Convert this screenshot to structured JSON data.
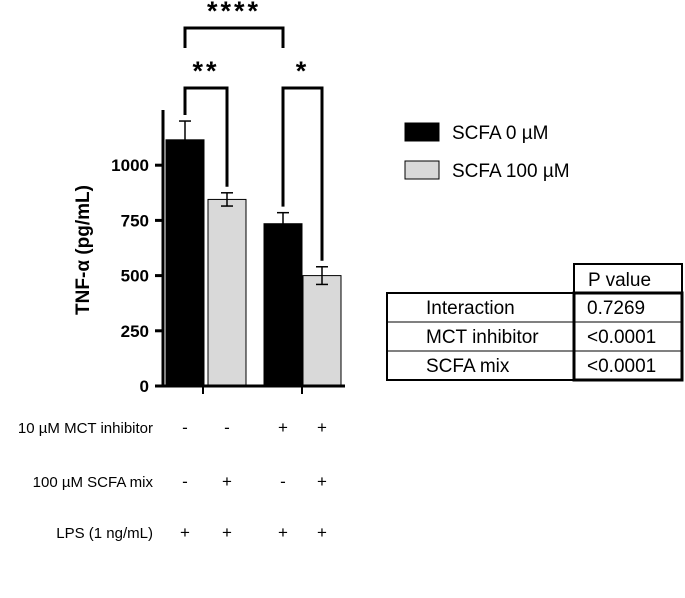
{
  "chart_data": {
    "type": "bar",
    "ylabel": "TNF-α (pg/mL)",
    "ylim": [
      0,
      1250
    ],
    "yticks": [
      0,
      250,
      500,
      750,
      1000
    ],
    "categories": [
      "group1",
      "group2"
    ],
    "series": [
      {
        "name": "SCFA 0 µM",
        "color": "#000000",
        "values": [
          1115,
          735
        ],
        "errors": [
          85,
          50
        ]
      },
      {
        "name": "SCFA 100 µM",
        "color": "#d9d9d9",
        "values": [
          845,
          500
        ],
        "errors": [
          30,
          40
        ]
      }
    ],
    "significance": [
      {
        "label": "****",
        "from_bar": 0,
        "to_bar": 2
      },
      {
        "label": "**",
        "from_bar": 0,
        "to_bar": 1
      },
      {
        "label": "*",
        "from_bar": 2,
        "to_bar": 3
      }
    ],
    "legend_position": "right",
    "conditions": [
      {
        "label": "10 µM MCT inhibitor",
        "signs": [
          "-",
          "-",
          "+",
          "+"
        ]
      },
      {
        "label": "100 µM SCFA mix",
        "signs": [
          "-",
          "+",
          "-",
          "+"
        ]
      },
      {
        "label": "LPS (1 ng/mL)",
        "signs": [
          "+",
          "+",
          "+",
          "+"
        ]
      }
    ],
    "stats_table": {
      "header": "P value",
      "rows": [
        {
          "label": "Interaction",
          "value": "0.7269"
        },
        {
          "label": "MCT inhibitor",
          "value": "<0.0001"
        },
        {
          "label": "SCFA mix",
          "value": "<0.0001"
        }
      ]
    }
  }
}
